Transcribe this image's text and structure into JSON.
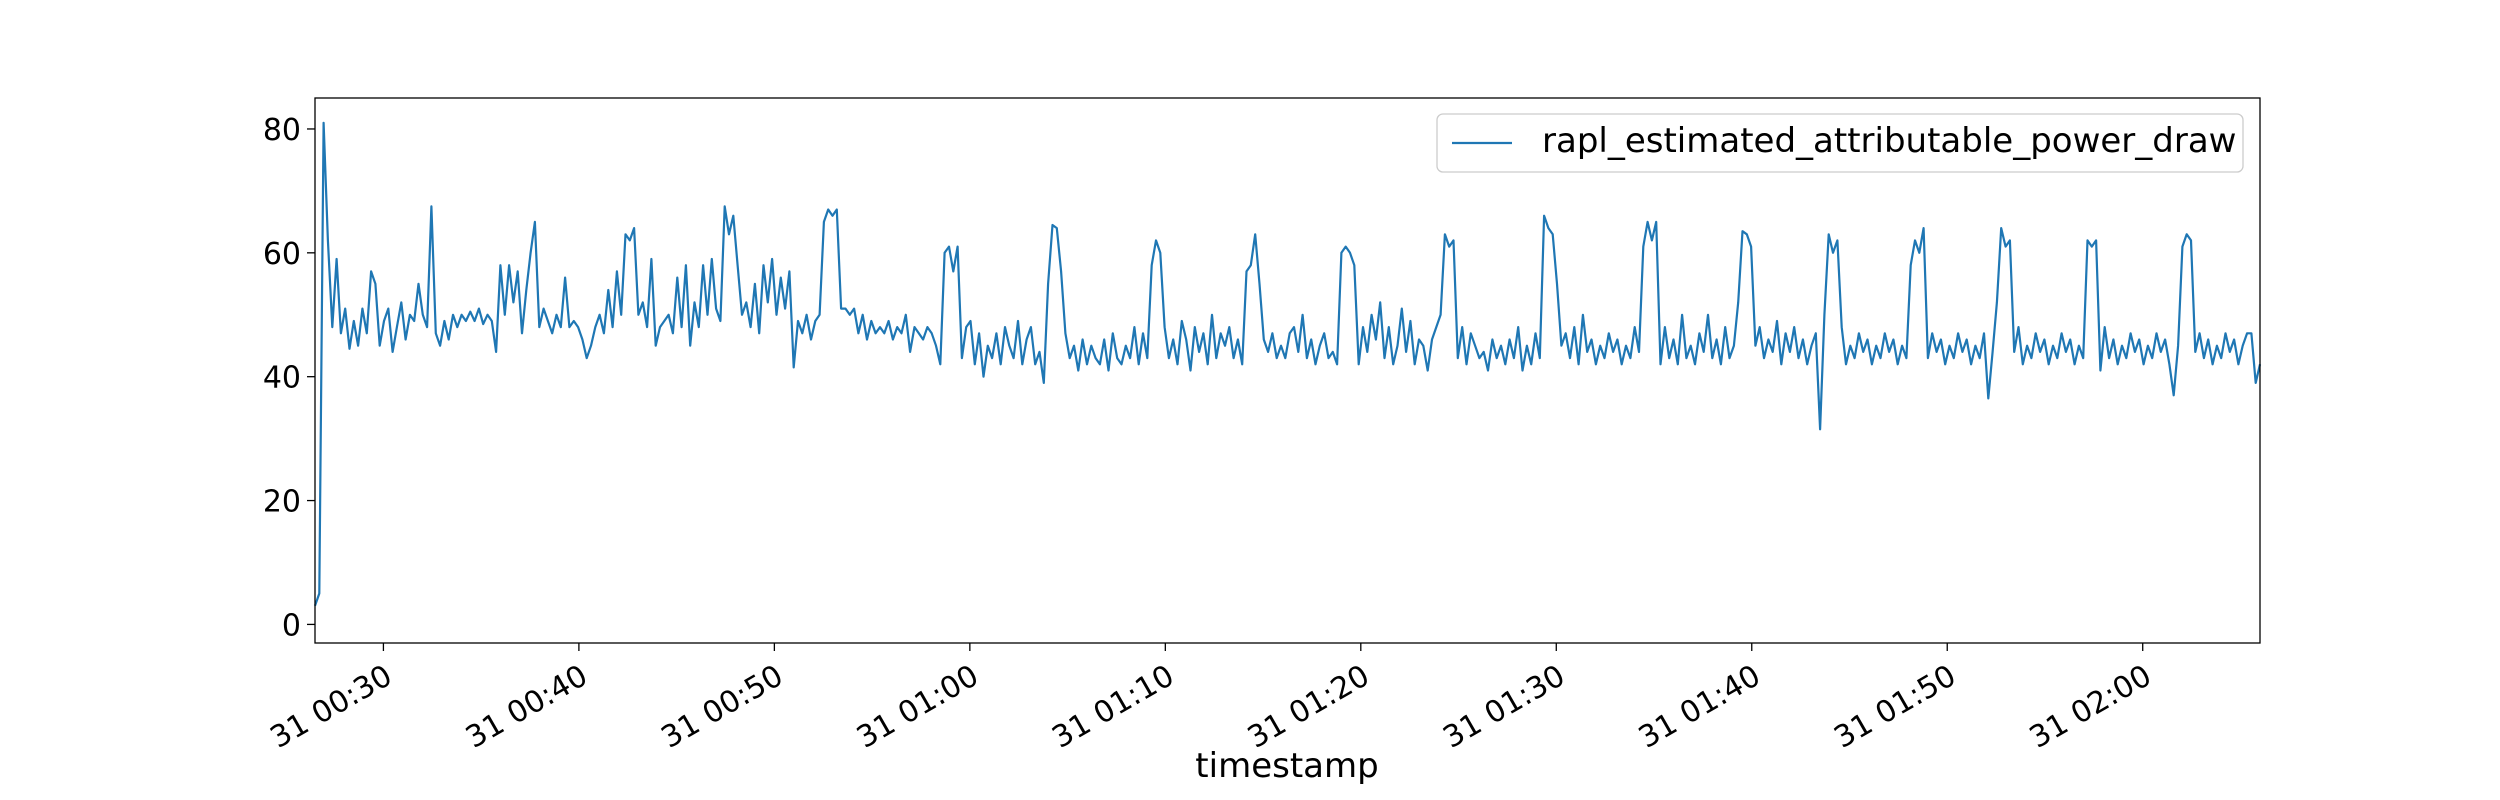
{
  "chart_data": {
    "type": "line",
    "title": "",
    "xlabel": "timestamp",
    "ylabel": "",
    "x_type": "time",
    "x_start": "00:26:30",
    "x_end": "02:06:00",
    "xlim": [
      "00:26:30",
      "02:06:00"
    ],
    "ylim": [
      -3,
      85
    ],
    "x_ticks": [
      {
        "value": "00:30",
        "label": "31 00:30"
      },
      {
        "value": "00:40",
        "label": "31 00:40"
      },
      {
        "value": "00:50",
        "label": "31 00:50"
      },
      {
        "value": "01:00",
        "label": "31 01:00"
      },
      {
        "value": "01:10",
        "label": "31 01:10"
      },
      {
        "value": "01:20",
        "label": "31 01:20"
      },
      {
        "value": "01:30",
        "label": "31 01:30"
      },
      {
        "value": "01:40",
        "label": "31 01:40"
      },
      {
        "value": "01:50",
        "label": "31 01:50"
      },
      {
        "value": "02:00",
        "label": "31 02:00"
      }
    ],
    "y_ticks": [
      0,
      20,
      40,
      60,
      80
    ],
    "grid": false,
    "legend_position": "top-right",
    "series": [
      {
        "name": "rapl_estimated_attributable_power_draw",
        "color": "#1f77b4",
        "values": [
          3.0,
          5.0,
          81.0,
          62.0,
          48.0,
          59.0,
          47.0,
          51.0,
          44.5,
          49.0,
          45.0,
          51.0,
          47.0,
          57.0,
          55.0,
          45.0,
          49.0,
          51.0,
          44.0,
          48.0,
          52.0,
          46.0,
          50.0,
          49.0,
          55.0,
          50.0,
          48.0,
          67.5,
          47.0,
          45.0,
          49.0,
          46.0,
          50.0,
          48.0,
          50.0,
          49.0,
          50.5,
          49.0,
          51.0,
          48.5,
          50.0,
          49.0,
          44.0,
          58.0,
          50.0,
          58.0,
          52.0,
          57.0,
          47.0,
          54.0,
          60.0,
          65.0,
          48.0,
          51.0,
          49.0,
          47.0,
          50.0,
          48.0,
          56.0,
          48.0,
          49.0,
          48.0,
          46.0,
          43.0,
          45.0,
          48.0,
          50.0,
          47.0,
          54.0,
          48.0,
          57.0,
          50.0,
          63.0,
          62.0,
          64.0,
          50.0,
          52.0,
          48.0,
          59.0,
          45.0,
          48.0,
          49.0,
          50.0,
          47.0,
          56.0,
          48.0,
          58.0,
          45.0,
          52.0,
          48.0,
          58.0,
          50.0,
          59.0,
          51.0,
          49.0,
          67.5,
          63.0,
          66.0,
          58.0,
          50.0,
          52.0,
          48.0,
          55.0,
          47.0,
          58.0,
          52.0,
          59.0,
          50.0,
          56.0,
          51.0,
          57.0,
          41.5,
          49.0,
          47.0,
          50.0,
          46.0,
          49.0,
          50.0,
          65.0,
          67.0,
          66.0,
          67.0,
          51.0,
          51.0,
          50.0,
          51.0,
          47.0,
          50.0,
          46.0,
          49.0,
          47.0,
          48.0,
          47.0,
          49.0,
          46.0,
          48.0,
          47.0,
          50.0,
          44.0,
          48.0,
          47.0,
          46.0,
          48.0,
          47.0,
          45.0,
          42.0,
          60.0,
          61.0,
          57.0,
          61.0,
          43.0,
          48.0,
          49.0,
          42.0,
          47.0,
          40.0,
          45.0,
          43.0,
          47.0,
          42.0,
          48.0,
          45.0,
          43.0,
          49.0,
          42.0,
          46.0,
          48.0,
          42.0,
          44.0,
          39.0,
          55.0,
          64.5,
          64.0,
          57.0,
          47.0,
          43.0,
          45.0,
          41.0,
          46.0,
          42.0,
          45.0,
          43.0,
          42.0,
          46.0,
          41.0,
          47.0,
          43.0,
          42.0,
          45.0,
          43.0,
          48.0,
          42.0,
          47.0,
          43.0,
          58.0,
          62.0,
          60.0,
          48.0,
          43.0,
          46.0,
          42.0,
          49.0,
          46.0,
          41.0,
          48.0,
          44.0,
          47.0,
          42.0,
          50.0,
          43.0,
          47.0,
          45.0,
          48.0,
          43.0,
          46.0,
          42.0,
          57.0,
          58.0,
          63.0,
          55.0,
          46.0,
          44.0,
          47.0,
          43.0,
          45.0,
          43.0,
          47.0,
          48.0,
          44.0,
          50.0,
          43.0,
          46.0,
          42.0,
          45.0,
          47.0,
          43.0,
          44.0,
          42.0,
          60.0,
          61.0,
          60.0,
          58.0,
          42.0,
          48.0,
          44.0,
          50.0,
          46.0,
          52.0,
          43.0,
          48.0,
          42.0,
          45.0,
          51.0,
          44.0,
          49.0,
          42.0,
          46.0,
          45.0,
          41.0,
          46.0,
          48.0,
          50.0,
          63.0,
          61.0,
          62.0,
          43.0,
          48.0,
          42.0,
          47.0,
          45.0,
          43.0,
          44.0,
          41.0,
          46.0,
          43.0,
          45.0,
          42.0,
          46.0,
          43.0,
          48.0,
          41.0,
          45.0,
          42.0,
          47.0,
          43.0,
          66.0,
          64.0,
          63.0,
          55.0,
          45.0,
          47.0,
          43.0,
          48.0,
          42.0,
          50.0,
          44.0,
          46.0,
          42.0,
          45.0,
          43.0,
          47.0,
          44.0,
          46.0,
          42.0,
          45.0,
          43.0,
          48.0,
          44.0,
          61.0,
          65.0,
          62.0,
          65.0,
          42.0,
          48.0,
          43.0,
          46.0,
          42.0,
          50.0,
          43.0,
          45.0,
          42.0,
          47.0,
          44.0,
          50.0,
          43.0,
          46.0,
          42.0,
          48.0,
          43.0,
          45.0,
          52.0,
          63.5,
          63.0,
          61.0,
          45.0,
          48.0,
          43.0,
          46.0,
          44.0,
          49.0,
          42.0,
          47.0,
          44.0,
          48.0,
          43.0,
          46.0,
          42.0,
          45.0,
          47.0,
          31.5,
          50.0,
          63.0,
          60.0,
          62.0,
          48.0,
          42.0,
          45.0,
          43.0,
          47.0,
          44.0,
          46.0,
          42.0,
          45.0,
          43.0,
          47.0,
          44.0,
          46.0,
          42.0,
          45.0,
          43.0,
          58.0,
          62.0,
          60.0,
          64.0,
          43.0,
          47.0,
          44.0,
          46.0,
          42.0,
          45.0,
          43.0,
          47.0,
          44.0,
          46.0,
          42.0,
          45.0,
          43.0,
          47.0,
          36.5,
          44.0,
          52.0,
          64.0,
          61.0,
          62.0,
          44.0,
          48.0,
          42.0,
          45.0,
          43.0,
          47.0,
          44.0,
          46.0,
          42.0,
          45.0,
          43.0,
          47.0,
          44.0,
          46.0,
          42.0,
          45.0,
          43.0,
          62.0,
          61.0,
          62.0,
          41.0,
          48.0,
          43.0,
          46.0,
          42.0,
          45.0,
          43.0,
          47.0,
          44.0,
          46.0,
          42.0,
          45.0,
          43.0,
          47.0,
          44.0,
          46.0,
          42.0,
          37.0,
          45.0,
          61.0,
          63.0,
          62.0,
          44.0,
          47.0,
          43.0,
          46.0,
          42.0,
          45.0,
          43.0,
          47.0,
          44.0,
          46.0,
          42.0,
          45.0,
          47.0,
          47.0,
          39.0,
          42.0
        ]
      }
    ]
  }
}
